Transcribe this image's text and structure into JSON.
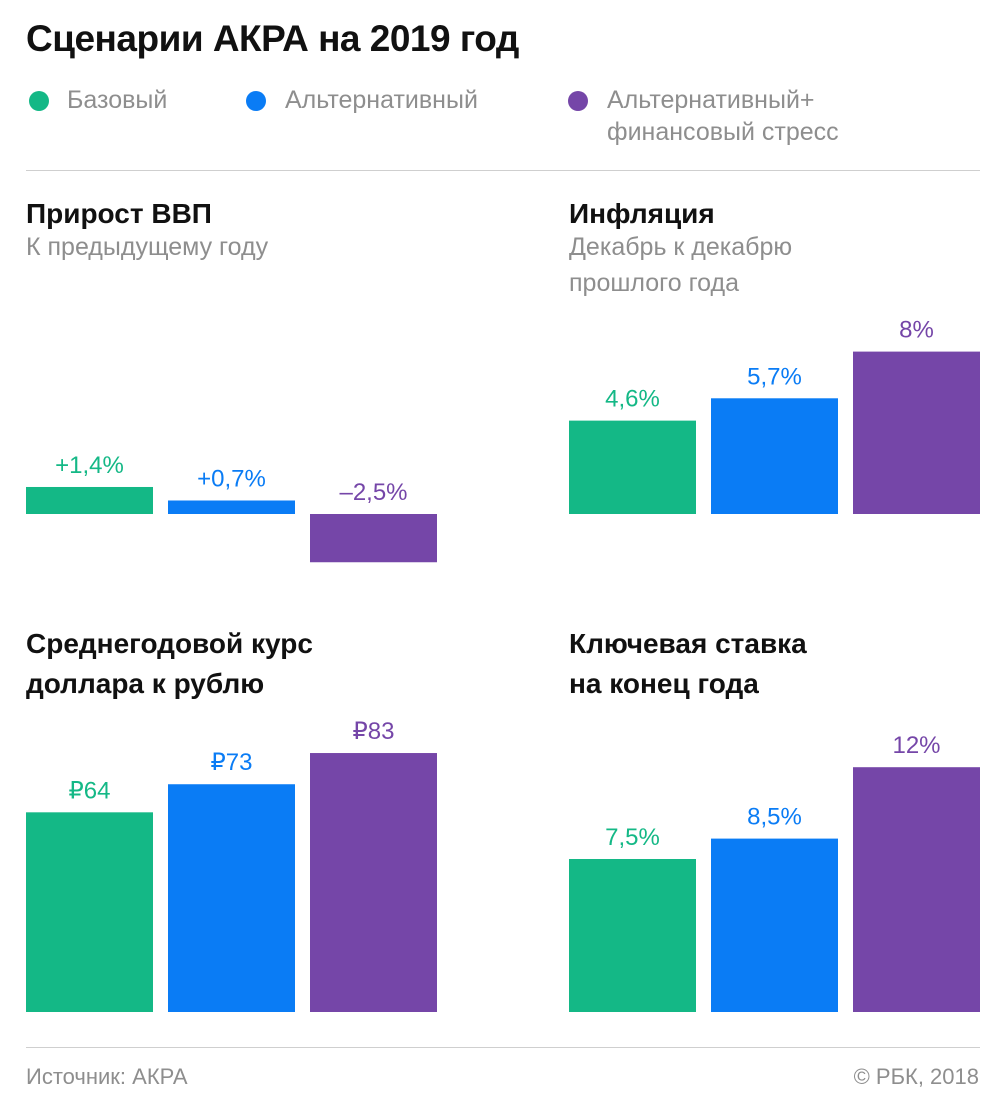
{
  "title": "Сценарии АКРА на 2019 год",
  "legend": [
    {
      "label": "Базовый",
      "color": "#14b886"
    },
    {
      "label": "Альтернативный",
      "color": "#0a7cf5"
    },
    {
      "label": "Альтернативный+\nфинансовый стресс",
      "color": "#7546a8"
    }
  ],
  "chart_data": [
    {
      "type": "bar",
      "title": "Прирост ВВП",
      "subtitle": "К предыдущему году",
      "categories": [
        "Базовый",
        "Альтернативный",
        "Альтернативный+ финансовый стресс"
      ],
      "values": [
        1.4,
        0.7,
        -2.5
      ],
      "value_labels": [
        "+1,4%",
        "+0,7%",
        "–2,5%"
      ],
      "colors": [
        "#14b886",
        "#0a7cf5",
        "#7546a8"
      ]
    },
    {
      "type": "bar",
      "title": "Инфляция",
      "subtitle": "Декабрь к декабрю\nпрошлого года",
      "categories": [
        "Базовый",
        "Альтернативный",
        "Альтернативный+ финансовый стресс"
      ],
      "values": [
        4.6,
        5.7,
        8
      ],
      "value_labels": [
        "4,6%",
        "5,7%",
        "8%"
      ],
      "colors": [
        "#14b886",
        "#0a7cf5",
        "#7546a8"
      ]
    },
    {
      "type": "bar",
      "title": "Среднегодовой курс\nдоллара к рублю",
      "subtitle": "",
      "categories": [
        "Базовый",
        "Альтернативный",
        "Альтернативный+ финансовый стресс"
      ],
      "values": [
        64,
        73,
        83
      ],
      "value_labels": [
        "₽64",
        "₽73",
        "₽83"
      ],
      "colors": [
        "#14b886",
        "#0a7cf5",
        "#7546a8"
      ]
    },
    {
      "type": "bar",
      "title": "Ключевая ставка\nна конец года",
      "subtitle": "",
      "categories": [
        "Базовый",
        "Альтернативный",
        "Альтернативный+ финансовый стресс"
      ],
      "values": [
        7.5,
        8.5,
        12
      ],
      "value_labels": [
        "7,5%",
        "8,5%",
        "12%"
      ],
      "colors": [
        "#14b886",
        "#0a7cf5",
        "#7546a8"
      ]
    }
  ],
  "footer": {
    "source": "Источник: АКРА",
    "copyright": "© РБК, 2018"
  }
}
